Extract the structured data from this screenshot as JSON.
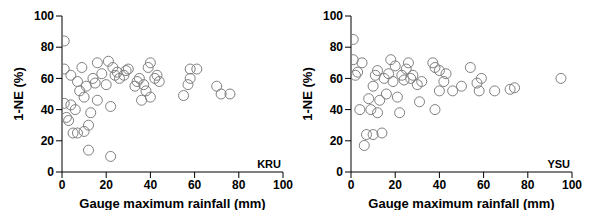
{
  "chart_data": [
    {
      "type": "scatter",
      "annotation": "KRU",
      "x_label": "Gauge maximum rainfall (mm)",
      "y_label": "1-NE (%)",
      "color": "#7f7f7f",
      "marker": "circle",
      "grid": false,
      "xlim": [
        0,
        100
      ],
      "xticks": [
        0,
        20,
        40,
        60,
        80,
        100
      ],
      "ylim": [
        0,
        100
      ],
      "yticks": [
        0,
        20,
        40,
        60,
        80,
        100
      ],
      "x": [
        1,
        1,
        1,
        2,
        3,
        4,
        4,
        5,
        6,
        7,
        7,
        8,
        9,
        10,
        10,
        11,
        12,
        12,
        13,
        14,
        15,
        16,
        16,
        18,
        20,
        21,
        22,
        22,
        23,
        24,
        25,
        26,
        28,
        29,
        30,
        33,
        34,
        35,
        36,
        37,
        38,
        39,
        40,
        40,
        42,
        43,
        44,
        55,
        57,
        58,
        58,
        61,
        70,
        72,
        76
      ],
      "values": [
        84,
        66,
        44,
        35,
        33,
        62,
        43,
        25,
        40,
        58,
        25,
        52,
        67,
        26,
        48,
        55,
        30,
        14,
        38,
        60,
        57,
        70,
        46,
        63,
        56,
        71,
        42,
        10,
        67,
        62,
        64,
        60,
        62,
        65,
        66,
        55,
        58,
        60,
        46,
        56,
        52,
        67,
        48,
        70,
        60,
        62,
        58,
        49,
        56,
        66,
        60,
        66,
        55,
        50,
        50
      ]
    },
    {
      "type": "scatter",
      "annotation": "YSU",
      "x_label": "Gauge maximum rainfall (mm)",
      "y_label": "1-NE (%)",
      "color": "#7f7f7f",
      "marker": "circle",
      "grid": false,
      "xlim": [
        0,
        100
      ],
      "xticks": [
        0,
        20,
        40,
        60,
        80,
        100
      ],
      "ylim": [
        0,
        100
      ],
      "yticks": [
        0,
        20,
        40,
        60,
        80,
        100
      ],
      "x": [
        1,
        1,
        2,
        3,
        4,
        5,
        6,
        7,
        8,
        9,
        10,
        10,
        11,
        12,
        12,
        13,
        14,
        15,
        16,
        17,
        18,
        19,
        20,
        21,
        22,
        23,
        24,
        25,
        26,
        27,
        28,
        30,
        31,
        32,
        37,
        38,
        38,
        40,
        40,
        42,
        43,
        46,
        50,
        54,
        57,
        58,
        59,
        65,
        72,
        74,
        95
      ],
      "values": [
        85,
        72,
        62,
        64,
        40,
        70,
        17,
        24,
        47,
        40,
        55,
        24,
        62,
        65,
        38,
        46,
        25,
        60,
        50,
        63,
        72,
        58,
        68,
        48,
        38,
        62,
        59,
        66,
        70,
        60,
        62,
        56,
        45,
        58,
        70,
        67,
        40,
        52,
        65,
        58,
        63,
        52,
        55,
        67,
        57,
        52,
        60,
        52,
        53,
        54,
        60
      ]
    }
  ]
}
